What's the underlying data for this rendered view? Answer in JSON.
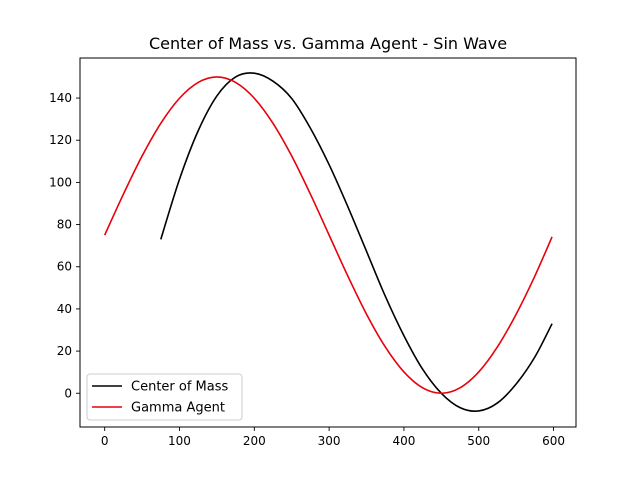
{
  "chart_data": {
    "type": "line",
    "title": "Center of Mass vs. Gamma Agent - Sin Wave",
    "xlabel": "",
    "ylabel": "",
    "xlim": [
      -33,
      630
    ],
    "ylim": [
      -16,
      159
    ],
    "x_ticks": [
      0,
      100,
      200,
      300,
      400,
      500,
      600
    ],
    "y_ticks": [
      0,
      20,
      40,
      60,
      80,
      100,
      120,
      140
    ],
    "x_tick_labels": [
      "0",
      "100",
      "200",
      "300",
      "400",
      "500",
      "600"
    ],
    "y_tick_labels": [
      "0",
      "20",
      "40",
      "60",
      "80",
      "100",
      "120",
      "140"
    ],
    "grid": false,
    "legend_position": "lower-left",
    "series": [
      {
        "name": "Center of Mass",
        "color": "#000000",
        "x": [
          75,
          100,
          125,
          150,
          175,
          200,
          225,
          250,
          275,
          300,
          325,
          350,
          375,
          400,
          425,
          450,
          475,
          500,
          525,
          550,
          575,
          598
        ],
        "y": [
          73,
          101.5,
          124.5,
          141.0,
          150.0,
          151.8,
          148.0,
          139.8,
          125.7,
          108.4,
          88.5,
          67.3,
          46.1,
          27.3,
          11.4,
          0.0,
          -6.8,
          -8.4,
          -4.6,
          4.4,
          17.2,
          33
        ]
      },
      {
        "name": "Gamma Agent",
        "color": "#e8000b",
        "x": [
          0,
          25,
          50,
          75,
          100,
          125,
          150,
          175,
          200,
          225,
          250,
          275,
          300,
          325,
          350,
          375,
          400,
          425,
          450,
          475,
          500,
          525,
          550,
          575,
          598
        ],
        "y": [
          75,
          94.4,
          112.5,
          128.0,
          139.9,
          147.4,
          150.0,
          147.4,
          139.9,
          128.0,
          112.5,
          94.4,
          75.0,
          55.6,
          37.5,
          22.0,
          10.1,
          2.6,
          0.0,
          2.6,
          10.1,
          22.0,
          37.5,
          55.6,
          74.2
        ]
      }
    ]
  }
}
